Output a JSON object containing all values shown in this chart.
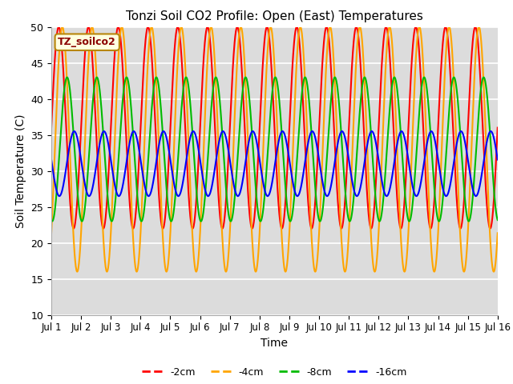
{
  "title": "Tonzi Soil CO2 Profile: Open (East) Temperatures",
  "xlabel": "Time",
  "ylabel": "Soil Temperature (C)",
  "ylim": [
    10,
    50
  ],
  "xlim_days": 15,
  "background_color": "#dcdcdc",
  "grid_color": "#ffffff",
  "legend_box_label": "TZ_soilco2",
  "x_tick_labels": [
    "Jul 1",
    "Jul 2",
    "Jul 3",
    "Jul 4",
    "Jul 5",
    "Jul 6",
    "Jul 7",
    "Jul 8",
    "Jul 9",
    "Jul 10",
    "Jul 11",
    "Jul 12",
    "Jul 13",
    "Jul 14",
    "Jul 15",
    "Jul 16"
  ],
  "series": [
    {
      "label": "-2cm",
      "color": "#ff0000",
      "mean": 36,
      "amplitude": 14,
      "phase": 0.0,
      "period": 1.0
    },
    {
      "label": "-4cm",
      "color": "#ffa500",
      "mean": 33,
      "amplitude": 17,
      "phase": 0.12,
      "period": 1.0
    },
    {
      "label": "-8cm",
      "color": "#00bb00",
      "mean": 33,
      "amplitude": 10,
      "phase": 0.28,
      "period": 1.0
    },
    {
      "label": "-16cm",
      "color": "#0000ff",
      "mean": 31,
      "amplitude": 4.5,
      "phase": 0.52,
      "period": 1.0
    }
  ],
  "yticks": [
    10,
    15,
    20,
    25,
    30,
    35,
    40,
    45,
    50
  ],
  "fig_width": 6.4,
  "fig_height": 4.8,
  "dpi": 100
}
